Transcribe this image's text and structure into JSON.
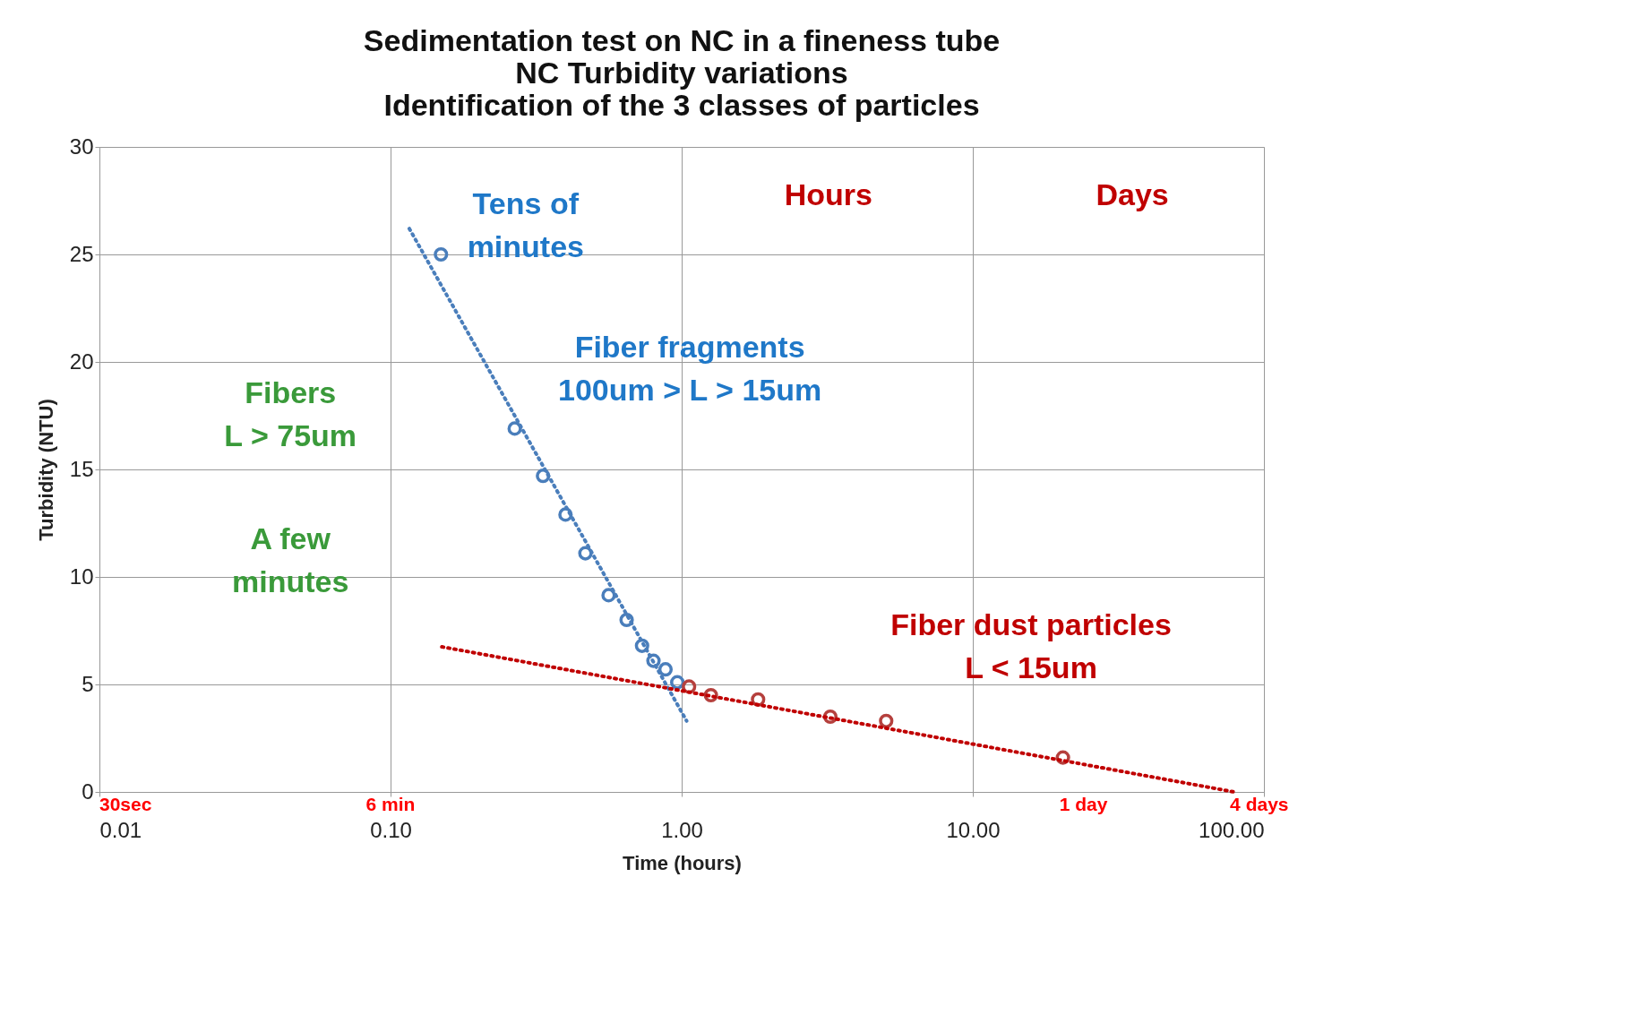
{
  "chart_data": {
    "type": "scatter",
    "title": [
      "Sedimentation test on  NC in a fineness tube",
      "NC  Turbidity variations",
      "Identification of the 3 classes of particles"
    ],
    "xlabel": "Time (hours)",
    "ylabel": "Turbidity (NTU)",
    "log": "x",
    "xlim": [
      0.01,
      100
    ],
    "xticks": [
      {
        "value": 0.01,
        "label": "0.01"
      },
      {
        "value": 0.1,
        "label": "0.10"
      },
      {
        "value": 1,
        "label": "1.00"
      },
      {
        "value": 10,
        "label": "10.00"
      },
      {
        "value": 100,
        "label": "100.00"
      }
    ],
    "ylim": [
      0,
      30
    ],
    "yticks": [
      0,
      5,
      10,
      15,
      20,
      25,
      30
    ],
    "grid": true,
    "series": [
      {
        "type": "scatter",
        "color": "#4a7ebb",
        "marker": "circle",
        "x": [
          0.149,
          0.267,
          0.334,
          0.399,
          0.467,
          0.561,
          0.647,
          0.731,
          0.8,
          0.88,
          0.966
        ],
        "values": [
          25.0,
          16.9,
          14.7,
          12.9,
          11.1,
          9.15,
          8.0,
          6.8,
          6.1,
          5.7,
          5.1
        ]
      },
      {
        "type": "scatter",
        "color": "#b5403d",
        "marker": "circle",
        "x": [
          1.06,
          1.26,
          1.83,
          3.24,
          5.04,
          20.4
        ],
        "values": [
          4.9,
          4.5,
          4.3,
          3.5,
          3.3,
          1.6
        ]
      },
      {
        "type": "line",
        "color": "#4a7ebb",
        "line_style": "dotted",
        "x": [
          0.116,
          1.04
        ],
        "values": [
          26.2,
          3.3
        ]
      },
      {
        "type": "line",
        "color": "#c00000",
        "line_style": "dotted",
        "x": [
          0.15,
          79
        ],
        "values": [
          6.75,
          0
        ]
      }
    ],
    "annotations": [
      "Tens of\nminutes",
      "Hours",
      "Days",
      "Fiber fragments\n100um > L > 15um",
      "Fibers\nL > 75um",
      "A few\nminutes",
      "Fiber dust particles\nL < 15um",
      "30sec",
      "6 min",
      "1 day",
      "4 days"
    ]
  }
}
